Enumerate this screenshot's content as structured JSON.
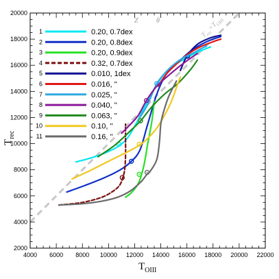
{
  "chart_data": {
    "type": "line",
    "title": "",
    "xlabel": "T",
    "xlabel_sub": "OIII",
    "ylabel": "T",
    "ylabel_sub": "rec",
    "xlim": [
      4000,
      22000
    ],
    "ylim": [
      2000,
      20000
    ],
    "x_ticks": [
      "4000",
      "6000",
      "8000",
      "10000",
      "12000",
      "14000",
      "16000",
      "18000",
      "20000",
      "22000"
    ],
    "y_ticks": [
      "2000",
      "4000",
      "6000",
      "8000",
      "10000",
      "12000",
      "14000",
      "16000",
      "18000",
      "20000"
    ],
    "grid": false,
    "legend_position": "top-left",
    "legend_header": {
      "z": "Z",
      "theta": "θ"
    },
    "reference_line": {
      "label": "T",
      "label_sub": "rec",
      "label_eq": "=T",
      "label_eq_sub": "OIII",
      "color": "#c8c8c8",
      "points": [
        [
          4000,
          4000
        ],
        [
          20000,
          20000
        ]
      ]
    },
    "series": [
      {
        "id": "1",
        "label": "0.20, 0.7dex",
        "color": "#00e8f0",
        "dashed": false,
        "points": [
          [
            7500,
            8600
          ],
          [
            8800,
            8950
          ],
          [
            10000,
            9400
          ],
          [
            10900,
            9900
          ],
          [
            11500,
            10500
          ],
          [
            12100,
            11500
          ],
          [
            12700,
            12700
          ],
          [
            13500,
            14200
          ],
          [
            14400,
            15500
          ],
          [
            15500,
            16300
          ],
          [
            16800,
            17000
          ],
          [
            17800,
            17400
          ]
        ],
        "marker": [
          10800,
          9950
        ]
      },
      {
        "id": "2",
        "label": "0.20, 0.8dex",
        "color": "#1030c8",
        "dashed": false,
        "points": [
          [
            6800,
            6300
          ],
          [
            8200,
            6800
          ],
          [
            9700,
            7400
          ],
          [
            10900,
            8000
          ],
          [
            11700,
            8600
          ],
          [
            12400,
            9500
          ],
          [
            13000,
            11500
          ],
          [
            13700,
            13800
          ],
          [
            14400,
            15300
          ],
          [
            15300,
            16200
          ],
          [
            16300,
            17100
          ],
          [
            17500,
            17800
          ],
          [
            18600,
            18200
          ]
        ],
        "marker": [
          11750,
          8650
        ]
      },
      {
        "id": "3",
        "label": "0.20, 0.9dex",
        "color": "#28e028",
        "dashed": false,
        "points": [
          [
            11300,
            5900
          ],
          [
            11800,
            6300
          ],
          [
            12300,
            7000
          ],
          [
            12700,
            8300
          ],
          [
            13000,
            10000
          ],
          [
            13300,
            11600
          ],
          [
            13500,
            13200
          ]
        ],
        "marker": [
          12350,
          7650
        ]
      },
      {
        "id": "4",
        "label": "0.32, 0.7dex",
        "color": "#7a1010",
        "dashed": true,
        "points": [
          [
            6200,
            5300
          ],
          [
            8000,
            5500
          ],
          [
            9500,
            5900
          ],
          [
            10400,
            6400
          ],
          [
            10900,
            6900
          ],
          [
            11200,
            7800
          ],
          [
            11300,
            9000
          ],
          [
            11300,
            10500
          ],
          [
            11300,
            11500
          ]
        ],
        "marker": [
          11050,
          7400
        ]
      },
      {
        "id": "5",
        "label": "0.010, 1dex",
        "color": "#101090",
        "dashed": false,
        "points": [
          [
            15500,
            15600
          ],
          [
            16000,
            16700
          ],
          [
            16800,
            17600
          ],
          [
            17800,
            18100
          ],
          [
            18600,
            18300
          ]
        ],
        "marker": [
          16050,
          16700
        ]
      },
      {
        "id": "6",
        "label": "0.016,  ''",
        "color": "#e01818",
        "dashed": false,
        "points": [
          [
            13800,
            14400
          ],
          [
            14400,
            15300
          ],
          [
            15200,
            16100
          ],
          [
            16000,
            16800
          ],
          [
            17000,
            17400
          ],
          [
            18000,
            17800
          ],
          [
            18600,
            18000
          ]
        ],
        "marker": null
      },
      {
        "id": "7",
        "label": "0.025,  ''",
        "color": "#30a8e0",
        "dashed": false,
        "points": [
          [
            12400,
            12000
          ],
          [
            13000,
            13000
          ],
          [
            13700,
            14600
          ],
          [
            14600,
            15700
          ],
          [
            15600,
            16500
          ],
          [
            16600,
            17000
          ],
          [
            17500,
            17500
          ]
        ],
        "marker": [
          13700,
          14600
        ]
      },
      {
        "id": "8",
        "label": "0.040,  ''",
        "color": "#8a1a9a",
        "dashed": false,
        "points": [
          [
            11000,
            10800
          ],
          [
            11600,
            11400
          ],
          [
            12300,
            12200
          ],
          [
            12900,
            13300
          ],
          [
            13700,
            14400
          ],
          [
            14800,
            15400
          ],
          [
            15800,
            16200
          ],
          [
            16800,
            16900
          ]
        ],
        "marker": [
          12900,
          13300
        ]
      },
      {
        "id": "9",
        "label": "0.063,  ''",
        "color": "#208a20",
        "dashed": false,
        "points": [
          [
            9200,
            9000
          ],
          [
            10500,
            9900
          ],
          [
            11800,
            11100
          ],
          [
            12500,
            11800
          ],
          [
            13300,
            12800
          ],
          [
            14300,
            13800
          ],
          [
            15300,
            14600
          ],
          [
            16300,
            15700
          ],
          [
            16800,
            16400
          ]
        ],
        "marker": [
          12450,
          11750
        ]
      },
      {
        "id": "10",
        "label": "0.10,  ''",
        "color": "#f0c820",
        "dashed": false,
        "points": [
          [
            7200,
            7300
          ],
          [
            8500,
            7900
          ],
          [
            9700,
            8500
          ],
          [
            10700,
            9000
          ],
          [
            11700,
            9500
          ],
          [
            12400,
            9900
          ],
          [
            13000,
            10400
          ],
          [
            13700,
            11200
          ],
          [
            14300,
            12200
          ],
          [
            14800,
            13200
          ],
          [
            15200,
            14300
          ],
          [
            15500,
            15100
          ]
        ],
        "marker": [
          12350,
          9950
        ]
      },
      {
        "id": "11",
        "label": "0.16,  ''",
        "color": "#6a6a6a",
        "dashed": false,
        "points": [
          [
            6200,
            5300
          ],
          [
            8000,
            5400
          ],
          [
            9500,
            5600
          ],
          [
            10700,
            5900
          ],
          [
            11700,
            6400
          ],
          [
            12500,
            7100
          ],
          [
            12900,
            7600
          ],
          [
            13200,
            7900
          ],
          [
            13700,
            8800
          ],
          [
            13900,
            10200
          ],
          [
            14000,
            11500
          ],
          [
            14200,
            12400
          ],
          [
            14600,
            13600
          ],
          [
            15200,
            14800
          ]
        ],
        "marker": [
          12950,
          7800
        ]
      }
    ]
  }
}
